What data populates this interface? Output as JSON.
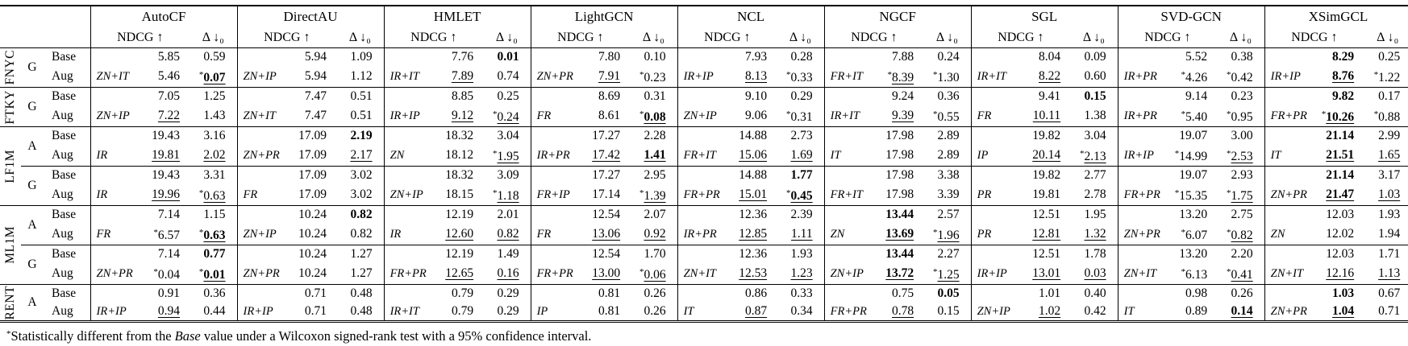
{
  "header": {
    "ndcg": "NDCG ↑",
    "delta": "Δ ↓₀"
  },
  "methods": [
    "AutoCF",
    "DirectAU",
    "HMLET",
    "LightGCN",
    "NCL",
    "NGCF",
    "SGL",
    "SVD-GCN",
    "XSimGCL"
  ],
  "row_labels": {
    "base": "Base",
    "aug": "Aug"
  },
  "cell_format_flags_legend": "s = asterisk, b = bold, u = underline; cell = [aug_label, ndcg, ndcg_flags, delta, delta_flags]",
  "groups": [
    {
      "dataset": "FNYC",
      "blocks": [
        {
          "split": "G",
          "base": [
            [
              "",
              "5.85",
              "",
              "0.59",
              ""
            ],
            [
              "",
              "5.94",
              "",
              "1.09",
              ""
            ],
            [
              "",
              "7.76",
              "",
              "0.01",
              "b"
            ],
            [
              "",
              "7.80",
              "",
              "0.10",
              ""
            ],
            [
              "",
              "7.93",
              "",
              "0.28",
              ""
            ],
            [
              "",
              "7.88",
              "",
              "0.24",
              ""
            ],
            [
              "",
              "8.04",
              "",
              "0.09",
              ""
            ],
            [
              "",
              "5.52",
              "",
              "0.38",
              ""
            ],
            [
              "",
              "8.29",
              "b",
              "0.25",
              ""
            ]
          ],
          "aug": [
            [
              "ZN+IT",
              "5.46",
              "",
              "0.07",
              "sbu"
            ],
            [
              "ZN+IP",
              "5.94",
              "",
              "1.12",
              ""
            ],
            [
              "IR+IT",
              "7.89",
              "u",
              "0.74",
              ""
            ],
            [
              "ZN+PR",
              "7.91",
              "u",
              "0.23",
              "s"
            ],
            [
              "IR+IP",
              "8.13",
              "u",
              "0.33",
              "s"
            ],
            [
              "FR+IT",
              "8.39",
              "su",
              "1.30",
              "s"
            ],
            [
              "IR+IT",
              "8.22",
              "u",
              "0.60",
              ""
            ],
            [
              "IR+PR",
              "4.26",
              "s",
              "0.42",
              "s"
            ],
            [
              "IR+IP",
              "8.76",
              "bu",
              "1.22",
              "s"
            ]
          ]
        }
      ]
    },
    {
      "dataset": "FTKY",
      "blocks": [
        {
          "split": "G",
          "base": [
            [
              "",
              "7.05",
              "",
              "1.25",
              ""
            ],
            [
              "",
              "7.47",
              "",
              "0.51",
              ""
            ],
            [
              "",
              "8.85",
              "",
              "0.25",
              ""
            ],
            [
              "",
              "8.69",
              "",
              "0.31",
              ""
            ],
            [
              "",
              "9.10",
              "",
              "0.29",
              ""
            ],
            [
              "",
              "9.24",
              "",
              "0.36",
              ""
            ],
            [
              "",
              "9.41",
              "",
              "0.15",
              "b"
            ],
            [
              "",
              "9.14",
              "",
              "0.23",
              ""
            ],
            [
              "",
              "9.82",
              "b",
              "0.17",
              ""
            ]
          ],
          "aug": [
            [
              "ZN+IP",
              "7.22",
              "u",
              "1.43",
              ""
            ],
            [
              "ZN+IT",
              "7.47",
              "",
              "0.51",
              ""
            ],
            [
              "IR+IP",
              "9.12",
              "u",
              "0.24",
              "su"
            ],
            [
              "FR",
              "8.61",
              "",
              "0.08",
              "sbu"
            ],
            [
              "ZN+IP",
              "9.06",
              "",
              "0.31",
              "s"
            ],
            [
              "IR+IT",
              "9.39",
              "u",
              "0.55",
              "s"
            ],
            [
              "FR",
              "10.11",
              "u",
              "1.38",
              ""
            ],
            [
              "IR+PR",
              "5.40",
              "s",
              "0.95",
              "s"
            ],
            [
              "FR+PR",
              "10.26",
              "sbu",
              "0.88",
              "s"
            ]
          ]
        }
      ]
    },
    {
      "dataset": "LF1M",
      "blocks": [
        {
          "split": "A",
          "base": [
            [
              "",
              "19.43",
              "",
              "3.16",
              ""
            ],
            [
              "",
              "17.09",
              "",
              "2.19",
              "b"
            ],
            [
              "",
              "18.32",
              "",
              "3.04",
              ""
            ],
            [
              "",
              "17.27",
              "",
              "2.28",
              ""
            ],
            [
              "",
              "14.88",
              "",
              "2.73",
              ""
            ],
            [
              "",
              "17.98",
              "",
              "2.89",
              ""
            ],
            [
              "",
              "19.82",
              "",
              "3.04",
              ""
            ],
            [
              "",
              "19.07",
              "",
              "3.00",
              ""
            ],
            [
              "",
              "21.14",
              "b",
              "2.99",
              ""
            ]
          ],
          "aug": [
            [
              "IR",
              "19.81",
              "u",
              "2.02",
              "u"
            ],
            [
              "ZN+PR",
              "17.09",
              "",
              "2.17",
              "u"
            ],
            [
              "ZN",
              "18.12",
              "",
              "1.95",
              "su"
            ],
            [
              "IR+PR",
              "17.42",
              "u",
              "1.41",
              "bu"
            ],
            [
              "FR+IT",
              "15.06",
              "u",
              "1.69",
              "u"
            ],
            [
              "IT",
              "17.98",
              "",
              "2.89",
              ""
            ],
            [
              "IP",
              "20.14",
              "u",
              "2.13",
              "su"
            ],
            [
              "IR+IP",
              "14.99",
              "s",
              "2.53",
              "su"
            ],
            [
              "IT",
              "21.51",
              "bu",
              "1.65",
              "u"
            ]
          ]
        },
        {
          "split": "G",
          "base": [
            [
              "",
              "19.43",
              "",
              "3.31",
              ""
            ],
            [
              "",
              "17.09",
              "",
              "3.02",
              ""
            ],
            [
              "",
              "18.32",
              "",
              "3.09",
              ""
            ],
            [
              "",
              "17.27",
              "",
              "2.95",
              ""
            ],
            [
              "",
              "14.88",
              "",
              "1.77",
              "b"
            ],
            [
              "",
              "17.98",
              "",
              "3.38",
              ""
            ],
            [
              "",
              "19.82",
              "",
              "2.77",
              ""
            ],
            [
              "",
              "19.07",
              "",
              "2.93",
              ""
            ],
            [
              "",
              "21.14",
              "b",
              "3.17",
              ""
            ]
          ],
          "aug": [
            [
              "IR",
              "19.96",
              "u",
              "0.63",
              "su"
            ],
            [
              "FR",
              "17.09",
              "",
              "3.02",
              ""
            ],
            [
              "ZN+IP",
              "18.15",
              "",
              "1.18",
              "su"
            ],
            [
              "FR+IP",
              "17.14",
              "",
              "1.39",
              "su"
            ],
            [
              "FR+PR",
              "15.01",
              "u",
              "0.45",
              "sbu"
            ],
            [
              "FR+IT",
              "17.98",
              "",
              "3.39",
              ""
            ],
            [
              "PR",
              "19.81",
              "",
              "2.78",
              ""
            ],
            [
              "FR+PR",
              "15.35",
              "s",
              "1.75",
              "su"
            ],
            [
              "ZN+PR",
              "21.47",
              "bu",
              "1.03",
              "u"
            ]
          ]
        }
      ]
    },
    {
      "dataset": "ML1M",
      "blocks": [
        {
          "split": "A",
          "base": [
            [
              "",
              "7.14",
              "",
              "1.15",
              ""
            ],
            [
              "",
              "10.24",
              "",
              "0.82",
              "b"
            ],
            [
              "",
              "12.19",
              "",
              "2.01",
              ""
            ],
            [
              "",
              "12.54",
              "",
              "2.07",
              ""
            ],
            [
              "",
              "12.36",
              "",
              "2.39",
              ""
            ],
            [
              "",
              "13.44",
              "b",
              "2.57",
              ""
            ],
            [
              "",
              "12.51",
              "",
              "1.95",
              ""
            ],
            [
              "",
              "13.20",
              "",
              "2.75",
              ""
            ],
            [
              "",
              "12.03",
              "",
              "1.93",
              ""
            ]
          ],
          "aug": [
            [
              "FR",
              "6.57",
              "s",
              "0.63",
              "sbu"
            ],
            [
              "ZN+IP",
              "10.24",
              "",
              "0.82",
              ""
            ],
            [
              "IR",
              "12.60",
              "u",
              "0.82",
              "u"
            ],
            [
              "FR",
              "13.06",
              "u",
              "0.92",
              "u"
            ],
            [
              "IR+PR",
              "12.85",
              "u",
              "1.11",
              "u"
            ],
            [
              "ZN",
              "13.69",
              "bu",
              "1.96",
              "su"
            ],
            [
              "PR",
              "12.81",
              "u",
              "1.32",
              "u"
            ],
            [
              "ZN+PR",
              "6.07",
              "s",
              "0.82",
              "su"
            ],
            [
              "ZN",
              "12.02",
              "",
              "1.94",
              ""
            ]
          ]
        },
        {
          "split": "G",
          "base": [
            [
              "",
              "7.14",
              "",
              "0.77",
              "b"
            ],
            [
              "",
              "10.24",
              "",
              "1.27",
              ""
            ],
            [
              "",
              "12.19",
              "",
              "1.49",
              ""
            ],
            [
              "",
              "12.54",
              "",
              "1.70",
              ""
            ],
            [
              "",
              "12.36",
              "",
              "1.93",
              ""
            ],
            [
              "",
              "13.44",
              "b",
              "2.27",
              ""
            ],
            [
              "",
              "12.51",
              "",
              "1.78",
              ""
            ],
            [
              "",
              "13.20",
              "",
              "2.20",
              ""
            ],
            [
              "",
              "12.03",
              "",
              "1.71",
              ""
            ]
          ],
          "aug": [
            [
              "ZN+PR",
              "0.04",
              "s",
              "0.01",
              "sbu"
            ],
            [
              "ZN+PR",
              "10.24",
              "",
              "1.27",
              ""
            ],
            [
              "FR+PR",
              "12.65",
              "u",
              "0.16",
              "u"
            ],
            [
              "FR+PR",
              "13.00",
              "u",
              "0.06",
              "su"
            ],
            [
              "ZN+IT",
              "12.53",
              "u",
              "1.23",
              "u"
            ],
            [
              "ZN+IP",
              "13.72",
              "bu",
              "1.25",
              "su"
            ],
            [
              "IR+IP",
              "13.01",
              "u",
              "0.03",
              "u"
            ],
            [
              "ZN+IT",
              "6.13",
              "s",
              "0.41",
              "su"
            ],
            [
              "ZN+IT",
              "12.16",
              "u",
              "1.13",
              "u"
            ]
          ]
        }
      ]
    },
    {
      "dataset": "RENT",
      "blocks": [
        {
          "split": "A",
          "base": [
            [
              "",
              "0.91",
              "",
              "0.36",
              ""
            ],
            [
              "",
              "0.71",
              "",
              "0.48",
              ""
            ],
            [
              "",
              "0.79",
              "",
              "0.29",
              ""
            ],
            [
              "",
              "0.81",
              "",
              "0.26",
              ""
            ],
            [
              "",
              "0.86",
              "",
              "0.33",
              ""
            ],
            [
              "",
              "0.75",
              "",
              "0.05",
              "b"
            ],
            [
              "",
              "1.01",
              "",
              "0.40",
              ""
            ],
            [
              "",
              "0.98",
              "",
              "0.26",
              ""
            ],
            [
              "",
              "1.03",
              "b",
              "0.67",
              ""
            ]
          ],
          "aug": [
            [
              "IR+IP",
              "0.94",
              "u",
              "0.44",
              ""
            ],
            [
              "IR+IP",
              "0.71",
              "",
              "0.48",
              ""
            ],
            [
              "IR+IT",
              "0.79",
              "",
              "0.29",
              ""
            ],
            [
              "IP",
              "0.81",
              "",
              "0.26",
              ""
            ],
            [
              "IT",
              "0.87",
              "u",
              "0.34",
              ""
            ],
            [
              "FR+PR",
              "0.78",
              "u",
              "0.15",
              ""
            ],
            [
              "ZN+IP",
              "1.02",
              "u",
              "0.42",
              ""
            ],
            [
              "IT",
              "0.89",
              "",
              "0.14",
              "bu"
            ],
            [
              "ZN+PR",
              "1.04",
              "bu",
              "0.71",
              ""
            ]
          ]
        }
      ]
    }
  ],
  "footnote": {
    "star": "*",
    "pre": "Statistically different from the ",
    "emph": "Base",
    "post": " value under a Wilcoxon signed-rank test with a 95% confidence interval."
  }
}
